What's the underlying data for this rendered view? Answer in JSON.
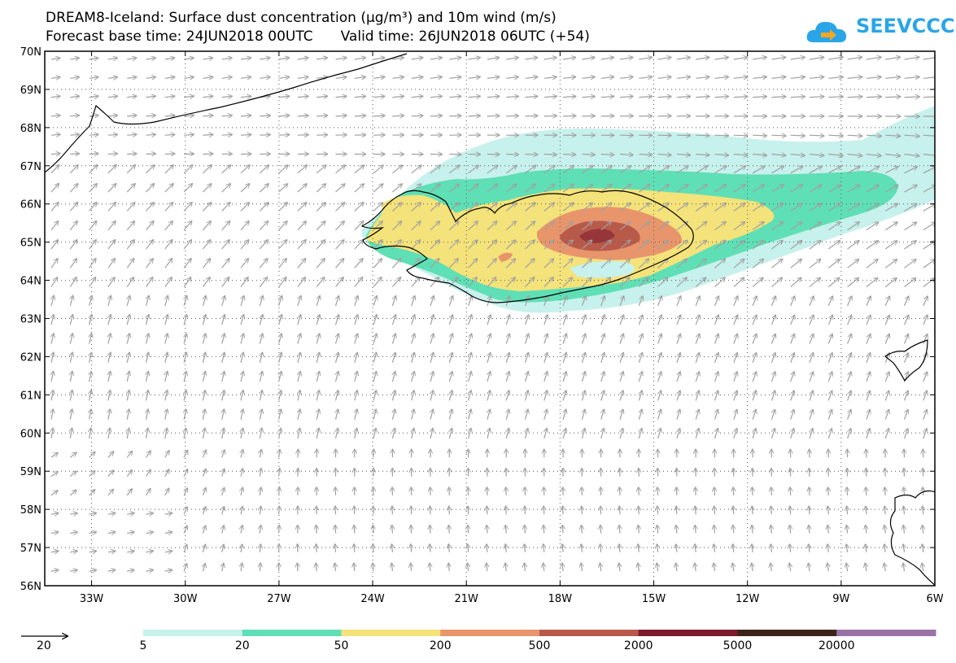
{
  "title": {
    "line1": "DREAM8-Iceland: Surface dust concentration (μg/m³) and 10m wind (m/s)",
    "base_time": "Forecast base time: 24JUN2018 00UTC",
    "valid_time": "Valid time: 26JUN2018 06UTC (+54)"
  },
  "logo": {
    "text": "SEEVCCC",
    "icon": "cloud-arrow-icon",
    "color": "#2aa5e8",
    "arrow_color": "#f5a623"
  },
  "map": {
    "lat_range": [
      56,
      70
    ],
    "lon_range": [
      -34.5,
      -6
    ],
    "lat_labels": [
      "70N",
      "69N",
      "68N",
      "67N",
      "66N",
      "65N",
      "64N",
      "63N",
      "62N",
      "61N",
      "60N",
      "59N",
      "58N",
      "57N",
      "56N"
    ],
    "lat_values": [
      70,
      69,
      68,
      67,
      66,
      65,
      64,
      63,
      62,
      61,
      60,
      59,
      58,
      57,
      56
    ],
    "lon_labels": [
      "33W",
      "30W",
      "27W",
      "24W",
      "21W",
      "18W",
      "15W",
      "12W",
      "9W",
      "6W"
    ],
    "lon_values": [
      -33,
      -30,
      -27,
      -24,
      -21,
      -18,
      -15,
      -12,
      -9,
      -6
    ],
    "arrow_color": "#a0a0a0",
    "coast_color": "#000000"
  },
  "legend": {
    "vector_ref_label": "20",
    "bins": [
      {
        "label": "5",
        "color": "#c7f1ec"
      },
      {
        "label": "20",
        "color": "#5fdfb5"
      },
      {
        "label": "50",
        "color": "#f4e27a"
      },
      {
        "label": "200",
        "color": "#e8956c"
      },
      {
        "label": "500",
        "color": "#b85a4a"
      },
      {
        "label": "2000",
        "color": "#7c1a2e"
      },
      {
        "label": "5000",
        "color": "#3d2418"
      },
      {
        "label": "20000",
        "color": "#9b72a8"
      }
    ]
  }
}
